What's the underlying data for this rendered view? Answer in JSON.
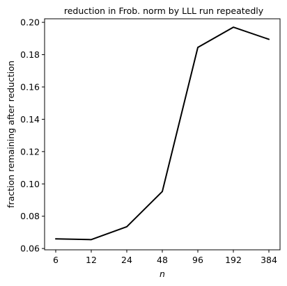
{
  "chart_data": {
    "type": "line",
    "title": "reduction in Frob. norm by LLL run repeatedly",
    "xlabel": "n",
    "ylabel": "fraction remaining after reduction",
    "x_scale": "log2",
    "x_ticks": [
      "6",
      "12",
      "24",
      "48",
      "96",
      "192",
      "384"
    ],
    "y_ticks": [
      "0.06",
      "0.08",
      "0.10",
      "0.12",
      "0.14",
      "0.16",
      "0.18",
      "0.20"
    ],
    "ylim": [
      0.0592,
      0.2022
    ],
    "grid": false,
    "series": [
      {
        "color": "#000000",
        "x": [
          6,
          12,
          24,
          48,
          96,
          192,
          384
        ],
        "y": [
          0.066,
          0.0655,
          0.0735,
          0.0953,
          0.1845,
          0.197,
          0.1895
        ]
      }
    ]
  }
}
